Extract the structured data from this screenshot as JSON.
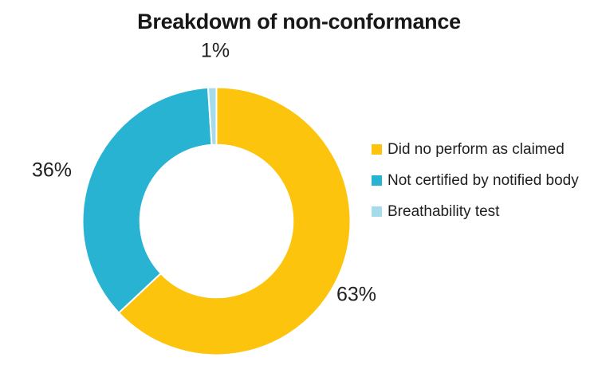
{
  "chart_data": {
    "type": "pie",
    "subtype": "donut",
    "title": "Breakdown of non-conformance",
    "categories": [
      "Did no perform as claimed",
      "Not certified by notified body",
      "Breathability test"
    ],
    "values": [
      63,
      36,
      1
    ],
    "unit": "%",
    "data_labels": [
      "63%",
      "36%",
      "1%"
    ],
    "colors": [
      "#FDC40D",
      "#29B3D3",
      "#A5DCEC"
    ],
    "background": "#FFFFFF",
    "text_color": "#1A1A1A",
    "legend_position": "right",
    "start_angle_deg": 0,
    "direction": "clockwise",
    "hole_ratio": 0.57,
    "slice_border_color": "#FFFFFF"
  }
}
